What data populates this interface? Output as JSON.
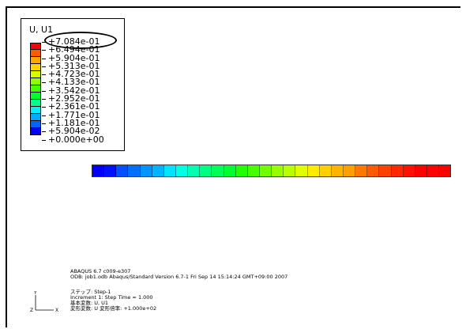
{
  "legend": {
    "title": "U, U1",
    "labels": [
      "+7.084e-01",
      "+6.494e-01",
      "+5.904e-01",
      "+5.313e-01",
      "+4.723e-01",
      "+4.133e-01",
      "+3.542e-01",
      "+2.952e-01",
      "+2.361e-01",
      "+1.771e-01",
      "+1.181e-01",
      "+5.904e-02",
      "+0.000e+00"
    ],
    "colors": [
      "#ff0000",
      "#ff5a00",
      "#ffa500",
      "#ffd200",
      "#d2ff00",
      "#8cff00",
      "#46ff00",
      "#00ff2e",
      "#00ff8c",
      "#00f0ff",
      "#00aaff",
      "#0064ff",
      "#0000ff"
    ]
  },
  "contour_bar": {
    "segment_colors": [
      "#0000ff",
      "#0010ff",
      "#0050ff",
      "#0070ff",
      "#0094ff",
      "#00b4ff",
      "#00e4ff",
      "#00ffe0",
      "#00ffb0",
      "#00ff80",
      "#00ff5a",
      "#00ff30",
      "#20ff00",
      "#46ff00",
      "#70ff00",
      "#96ff00",
      "#b8ff00",
      "#e0ff00",
      "#ffea00",
      "#ffd000",
      "#ffb400",
      "#ffa000",
      "#ff7800",
      "#ff5a00",
      "#ff4000",
      "#ff2800",
      "#ff1000",
      "#ff0000",
      "#ff0000",
      "#ff0000"
    ]
  },
  "info": {
    "line1": "ABAQUS 6.7 c009-e307",
    "line2": "ODB: job1.odb    Abaqus/Standard Version 6.7-1    Fri Sep 14 15:14:24 GMT+09:00 2007"
  },
  "step": {
    "line1": "ステップ: Step-1",
    "line2": "Increment      1: Step Time =    1.000",
    "line3": "基本変数: U, U1",
    "line4": "変形変数: U   変形倍率: +1.000e+02"
  },
  "triad": {
    "y_label": "Y",
    "x_label": "X",
    "z_label": "Z"
  }
}
